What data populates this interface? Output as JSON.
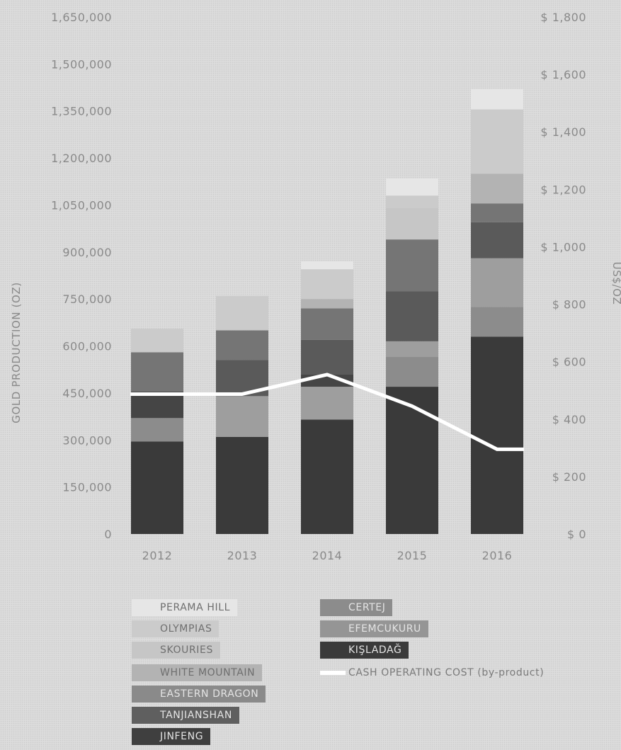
{
  "chart_data": {
    "type": "bar",
    "stacked": true,
    "categories": [
      "2012",
      "2013",
      "2014",
      "2015",
      "2016"
    ],
    "y_left": {
      "label": "GOLD PRODUCTION (OZ)",
      "ylim": [
        0,
        1650000
      ],
      "ticks": [
        "0",
        "150,000",
        "300,000",
        "450,000",
        "600,000",
        "750,000",
        "900,000",
        "1,050,000",
        "1,200,000",
        "1,350,000",
        "1,500,000",
        "1,650,000"
      ]
    },
    "y_right": {
      "label": "US$/OZ",
      "ylim": [
        0,
        1800
      ],
      "ticks": [
        "$ 0",
        "$ 200",
        "$ 400",
        "$ 600",
        "$ 800",
        "$ 1,000",
        "$ 1,200",
        "$ 1,400",
        "$ 1,600",
        "$ 1,800"
      ]
    },
    "series": [
      {
        "name": "KIŞLADAĞ",
        "color": "#3a3a3a",
        "values": [
          295000,
          310000,
          365000,
          470000,
          630000
        ]
      },
      {
        "name": "EFEMCUKURU",
        "color": "#8c8c8c",
        "values": [
          75000,
          0,
          0,
          95000,
          95000
        ]
      },
      {
        "name": "CERTEJ",
        "color": "#9e9e9e",
        "values": [
          0,
          130000,
          105000,
          50000,
          155000
        ]
      },
      {
        "name": "JINFENG",
        "color": "#454545",
        "values": [
          85000,
          0,
          40000,
          0,
          0
        ]
      },
      {
        "name": "TANJIANSHAN",
        "color": "#5a5a5a",
        "values": [
          0,
          115000,
          110000,
          160000,
          115000
        ]
      },
      {
        "name": "EASTERN DRAGON",
        "color": "#757575",
        "values": [
          125000,
          95000,
          100000,
          165000,
          60000
        ]
      },
      {
        "name": "WHITE MOUNTAIN",
        "color": "#b3b3b3",
        "values": [
          0,
          0,
          30000,
          0,
          95000
        ]
      },
      {
        "name": "SKOURIES",
        "color": "#c6c6c6",
        "values": [
          0,
          0,
          0,
          100000,
          0
        ]
      },
      {
        "name": "OLYMPIAS",
        "color": "#cbcbcb",
        "values": [
          75000,
          110000,
          95000,
          40000,
          205000
        ]
      },
      {
        "name": "PERAMA HILL",
        "color": "#e6e6e6",
        "values": [
          0,
          0,
          25000,
          55000,
          65000
        ]
      }
    ],
    "line": {
      "name": "CASH OPERATING COST (by-product)",
      "color": "#ffffff",
      "values": [
        487,
        487,
        555,
        445,
        295
      ]
    },
    "legend_position": "bottom-left"
  },
  "legend": {
    "items": [
      {
        "label": "PERAMA HILL",
        "color": "#e6e6e6",
        "style": "light"
      },
      {
        "label": "OLYMPIAS",
        "color": "#cbcbcb",
        "style": "light"
      },
      {
        "label": "SKOURIES",
        "color": "#c6c6c6",
        "style": "light"
      },
      {
        "label": "WHITE MOUNTAIN",
        "color": "#b3b3b3",
        "style": "light"
      },
      {
        "label": "EASTERN DRAGON",
        "color": "#8a8a8a",
        "style": "dark"
      },
      {
        "label": "TANJIANSHAN",
        "color": "#5f5f5f",
        "style": "dark"
      },
      {
        "label": "JINFENG",
        "color": "#3f3f3f",
        "style": "dark"
      },
      {
        "label": "CERTEJ",
        "color": "#8c8c8c",
        "style": "dark"
      },
      {
        "label": "EFEMCUKURU",
        "color": "#959595",
        "style": "dark"
      },
      {
        "label": "KIŞLADAĞ",
        "color": "#3a3a3a",
        "style": "dark"
      },
      {
        "label": "CASH OPERATING COST (by-product)",
        "color": "#ffffff",
        "style": "line"
      }
    ]
  }
}
